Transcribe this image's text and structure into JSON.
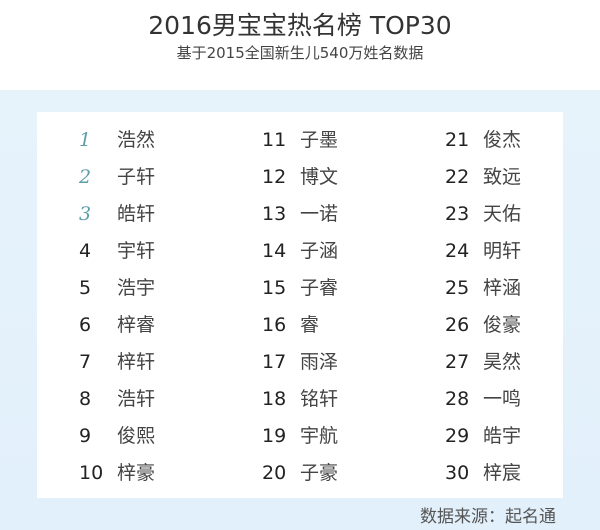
{
  "title": "2016男宝宝热名榜  TOP30",
  "subtitle": "基于2015全国新生儿540万姓名数据",
  "accent_color": "#5f9ea8",
  "ranking": [
    {
      "rank": "1",
      "name": "浩然"
    },
    {
      "rank": "2",
      "name": "子轩"
    },
    {
      "rank": "3",
      "name": "皓轩"
    },
    {
      "rank": "4",
      "name": "宇轩"
    },
    {
      "rank": "5",
      "name": "浩宇"
    },
    {
      "rank": "6",
      "name": "梓睿"
    },
    {
      "rank": "7",
      "name": "梓轩"
    },
    {
      "rank": "8",
      "name": "浩轩"
    },
    {
      "rank": "9",
      "name": "俊熙"
    },
    {
      "rank": "10",
      "name": "梓豪"
    },
    {
      "rank": "11",
      "name": "子墨"
    },
    {
      "rank": "12",
      "name": "博文"
    },
    {
      "rank": "13",
      "name": "一诺"
    },
    {
      "rank": "14",
      "name": "子涵"
    },
    {
      "rank": "15",
      "name": "子睿"
    },
    {
      "rank": "16",
      "name": "睿"
    },
    {
      "rank": "17",
      "name": "雨泽"
    },
    {
      "rank": "18",
      "name": "铭轩"
    },
    {
      "rank": "19",
      "name": "宇航"
    },
    {
      "rank": "20",
      "name": "子豪"
    },
    {
      "rank": "21",
      "name": "俊杰"
    },
    {
      "rank": "22",
      "name": "致远"
    },
    {
      "rank": "23",
      "name": "天佑"
    },
    {
      "rank": "24",
      "name": "明轩"
    },
    {
      "rank": "25",
      "name": "梓涵"
    },
    {
      "rank": "26",
      "name": "俊豪"
    },
    {
      "rank": "27",
      "name": "昊然"
    },
    {
      "rank": "28",
      "name": "一鸣"
    },
    {
      "rank": "29",
      "name": "皓宇"
    },
    {
      "rank": "30",
      "name": "梓宸"
    }
  ],
  "source": "数据来源：起名通"
}
